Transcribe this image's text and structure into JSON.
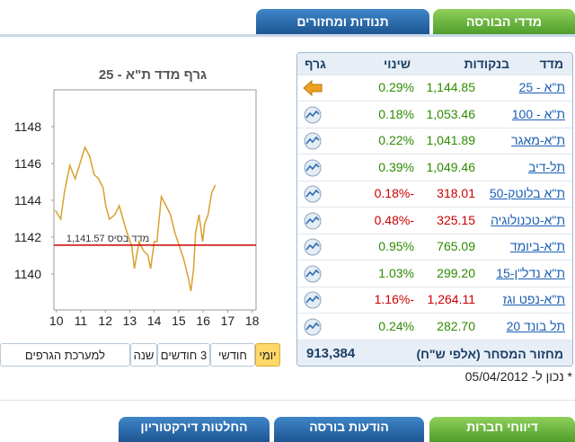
{
  "tabs": [
    {
      "label": "מדדי הבורסה",
      "active": true
    },
    {
      "label": "תנודות ומחזורים",
      "active": false
    }
  ],
  "chart_data": {
    "type": "line",
    "title": "גרף מדד ת\"א - 25",
    "x": [
      9.96,
      10.18,
      10.33,
      10.55,
      10.77,
      11.0,
      11.17,
      11.36,
      11.54,
      11.72,
      11.91,
      12.02,
      12.17,
      12.39,
      12.57,
      12.83,
      13.08,
      13.19,
      13.38,
      13.56,
      13.74,
      13.85,
      14.0,
      14.11,
      14.29,
      14.48,
      14.66,
      14.84,
      15.03,
      15.21,
      15.39,
      15.5,
      15.61,
      15.69,
      15.83,
      15.98,
      16.06,
      16.2,
      16.35,
      16.5
    ],
    "values": [
      1143.46,
      1142.98,
      1144.44,
      1145.9,
      1145.17,
      1146.15,
      1146.88,
      1146.39,
      1145.41,
      1145.17,
      1144.68,
      1143.71,
      1142.98,
      1143.22,
      1143.71,
      1142.49,
      1141.51,
      1140.29,
      1141.76,
      1141.27,
      1141.02,
      1140.29,
      1141.76,
      1141.76,
      1144.2,
      1143.71,
      1143.22,
      1142.24,
      1141.51,
      1140.78,
      1139.8,
      1139.07,
      1140.29,
      1142.24,
      1143.22,
      1141.76,
      1142.73,
      1143.22,
      1144.44,
      1144.83
    ],
    "color": "#d9a030",
    "xlim": [
      9.9,
      18.16
    ],
    "ylim": [
      1138.05,
      1150.0
    ],
    "xticks": [
      10,
      11,
      12,
      13,
      14,
      15,
      16,
      17,
      18
    ],
    "yticks": [
      1140,
      1142,
      1144,
      1146,
      1148
    ],
    "baseline": {
      "value": 1141.57,
      "label": "מדד בסיס 1,141.57",
      "color": "#cc0000"
    }
  },
  "range_buttons": [
    {
      "label": "יומי",
      "active": true
    },
    {
      "label": "חודשי",
      "active": false
    },
    {
      "label": "3 חודשים",
      "active": false
    },
    {
      "label": "שנה",
      "active": false
    },
    {
      "label": "למערכת הגרפים",
      "active": false
    }
  ],
  "table": {
    "headers": [
      "מדד",
      "בנקודות",
      "שינוי",
      "גרף"
    ],
    "rows": [
      {
        "name": "ת\"א - 25",
        "points": "1,144.85",
        "change": "0.29%",
        "color": "#2e8b00",
        "icon": "arrow"
      },
      {
        "name": "ת\"א - 100",
        "points": "1,053.46",
        "change": "0.18%",
        "color": "#2e8b00",
        "icon": "chart"
      },
      {
        "name": "ת\"א-מאגר",
        "points": "1,041.89",
        "change": "0.22%",
        "color": "#2e8b00",
        "icon": "chart"
      },
      {
        "name": "תל-דיב",
        "points": "1,049.46",
        "change": "0.39%",
        "color": "#2e8b00",
        "icon": "chart"
      },
      {
        "name": "ת\"א בלוטק-50",
        "points": "318.01",
        "change": "-0.18%",
        "color": "#cc0000",
        "icon": "chart"
      },
      {
        "name": "ת\"א-טכנולוגיה",
        "points": "325.15",
        "change": "-0.48%",
        "color": "#cc0000",
        "icon": "chart"
      },
      {
        "name": "ת\"א-ביומד",
        "points": "765.09",
        "change": "0.95%",
        "color": "#2e8b00",
        "icon": "chart"
      },
      {
        "name": "ת\"א נדל\"ן-15",
        "points": "299.20",
        "change": "1.03%",
        "color": "#2e8b00",
        "icon": "chart"
      },
      {
        "name": "ת\"א-נפט וגז",
        "points": "1,264.11",
        "change": "-1.16%",
        "color": "#cc0000",
        "icon": "chart"
      },
      {
        "name": "תל בונד 20",
        "points": "282.70",
        "change": "0.24%",
        "color": "#2e8b00",
        "icon": "chart"
      }
    ],
    "footer": {
      "label": "מחזור המסחר (אלפי ש\"ח)",
      "value": "913,384"
    }
  },
  "date_note": "* נכון ל- 05/04/2012",
  "bottom_tabs": [
    "דיווחי חברות",
    "הודעות בורסה",
    "החלטות דירקטוריון"
  ]
}
